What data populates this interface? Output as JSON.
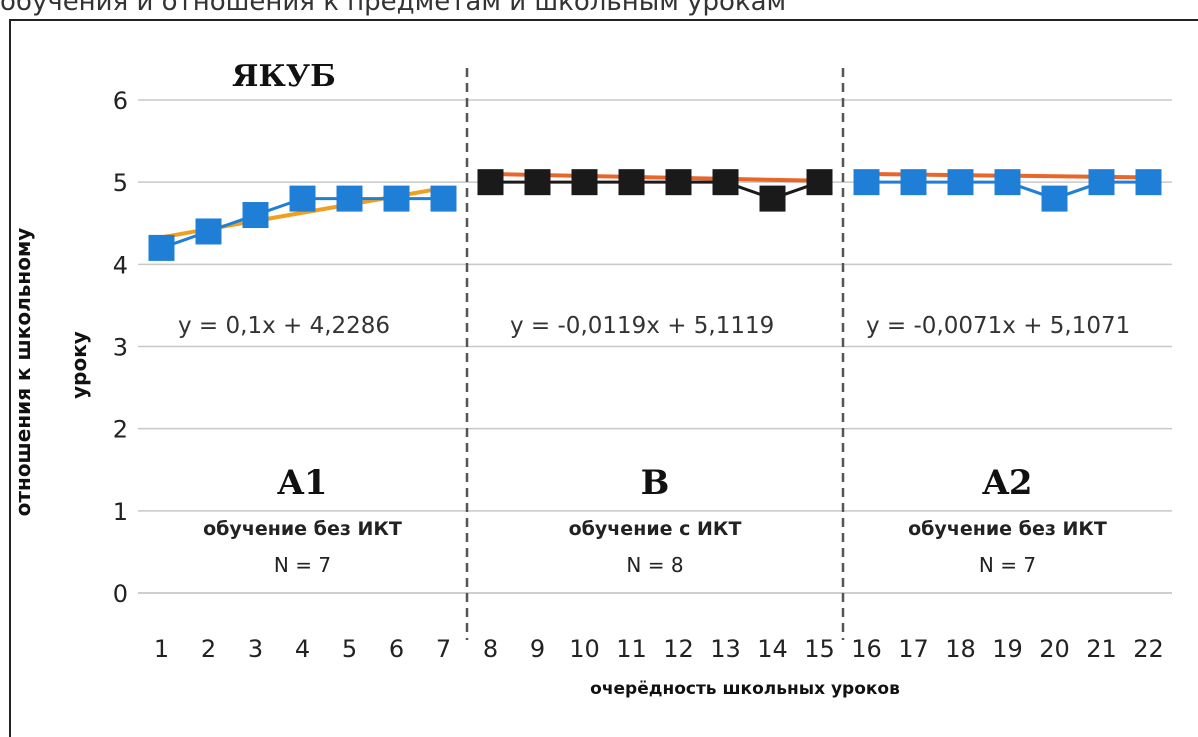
{
  "chart_data": {
    "type": "line",
    "title": "ЯКУБ",
    "top_caption": "обучения и отношения к предметам и школьным урокам",
    "ylabel_lines": [
      "отношения к школьному",
      "уроку"
    ],
    "xlabel": "очерёдность школьных уроков",
    "ylim": [
      0,
      6
    ],
    "yticks": [
      0,
      1,
      2,
      3,
      4,
      5,
      6
    ],
    "xlim": [
      0.5,
      22.5
    ],
    "xticks": [
      1,
      2,
      3,
      4,
      5,
      6,
      7,
      8,
      9,
      10,
      11,
      12,
      13,
      14,
      15,
      16,
      17,
      18,
      19,
      20,
      21,
      22
    ],
    "grid": true,
    "phase_dividers": [
      7.5,
      15.5
    ],
    "series": [
      {
        "segment": "A1",
        "color": "#1f7fd6",
        "x": [
          1,
          2,
          3,
          4,
          5,
          6,
          7
        ],
        "y": [
          4.2,
          4.4,
          4.6,
          4.8,
          4.8,
          4.8,
          4.8
        ]
      },
      {
        "segment": "B",
        "color": "#1a1a1a",
        "x": [
          8,
          9,
          10,
          11,
          12,
          13,
          14,
          15
        ],
        "y": [
          5,
          5,
          5,
          5,
          5,
          5,
          4.8,
          5
        ]
      },
      {
        "segment": "A2",
        "color": "#1f7fd6",
        "x": [
          16,
          17,
          18,
          19,
          20,
          21,
          22
        ],
        "y": [
          5,
          5,
          5,
          5,
          4.8,
          5,
          5
        ]
      }
    ],
    "trendlines": [
      {
        "segment": "A1",
        "color": "#f0a020",
        "equation": "y = 0,1x + 4,2286",
        "x": [
          1,
          7
        ],
        "slope": 0.1,
        "intercept": 4.2286,
        "local_index_start": 1
      },
      {
        "segment": "B",
        "color": "#e8662a",
        "equation": "y = -0,0119x + 5,1119",
        "x": [
          8,
          15
        ],
        "slope": -0.0119,
        "intercept": 5.1119,
        "local_index_start": 1
      },
      {
        "segment": "A2",
        "color": "#e8662a",
        "equation": "y = -0,0071x + 5,1071",
        "x": [
          16,
          22
        ],
        "slope": -0.0071,
        "intercept": 5.1071,
        "local_index_start": 1
      }
    ],
    "phases": [
      {
        "label": "A1",
        "description": "обучение без ИКТ",
        "n": "N = 7",
        "x_center": 4
      },
      {
        "label": "B",
        "description": "обучение с ИКТ",
        "n": "N = 8",
        "x_center": 11.5
      },
      {
        "label": "A2",
        "description": "обучение без ИКТ",
        "n": "N = 7",
        "x_center": 19
      }
    ]
  }
}
